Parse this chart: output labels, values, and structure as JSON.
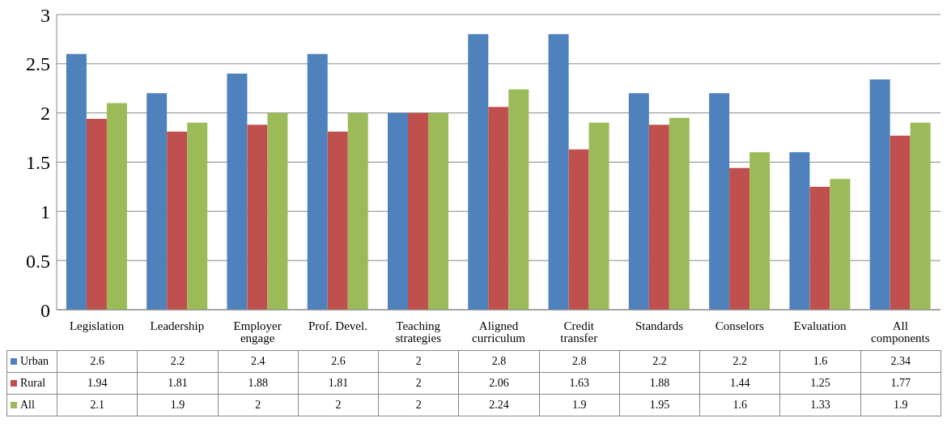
{
  "chart_data": {
    "type": "bar",
    "categories": [
      "Legislation",
      "Leadership",
      "Employer engage",
      "Prof. Devel.",
      "Teaching strategies",
      "Aligned curriculum",
      "Credit transfer",
      "Standards",
      "Conselors",
      "Evaluation",
      "All components"
    ],
    "series": [
      {
        "name": "Urban",
        "color": "#4f81bd",
        "values": [
          2.6,
          2.2,
          2.4,
          2.6,
          2,
          2.8,
          2.8,
          2.2,
          2.2,
          1.6,
          2.34
        ]
      },
      {
        "name": "Rural",
        "color": "#c0504d",
        "values": [
          1.94,
          1.81,
          1.88,
          1.81,
          2,
          2.06,
          1.63,
          1.88,
          1.44,
          1.25,
          1.77
        ]
      },
      {
        "name": "All",
        "color": "#9bbb59",
        "values": [
          2.1,
          1.9,
          2,
          2,
          2,
          2.24,
          1.9,
          1.95,
          1.6,
          1.33,
          1.9
        ]
      }
    ],
    "ylim": [
      0,
      3
    ],
    "yticks": [
      0,
      0.5,
      1,
      1.5,
      2,
      2.5,
      3
    ],
    "grid": "y",
    "data_labels": true,
    "legend": "bottom"
  }
}
